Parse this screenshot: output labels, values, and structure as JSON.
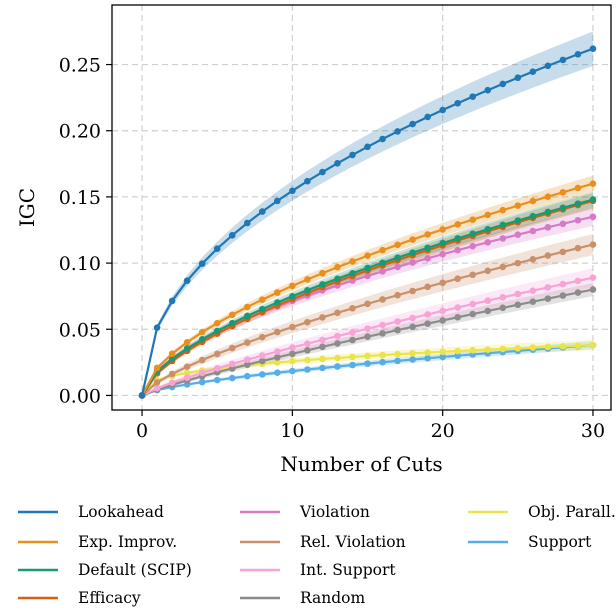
{
  "chart_data": {
    "type": "line",
    "xlabel": "Number of Cuts",
    "ylabel": "IGC",
    "xlim": [
      -2,
      31.2
    ],
    "ylim": [
      -0.011,
      0.295
    ],
    "xticks": [
      0,
      10,
      20,
      30
    ],
    "yticks": [
      0.0,
      0.05,
      0.1,
      0.15,
      0.2,
      0.25
    ],
    "ytick_labels": [
      "0.00",
      "0.05",
      "0.10",
      "0.15",
      "0.20",
      "0.25"
    ],
    "grid": true,
    "grid_style": "dashed",
    "legend_position": "bottom",
    "markers": true,
    "confidence_band": true,
    "series": [
      {
        "name": "Lookahead",
        "color": "#1f77b4",
        "final": 0.262,
        "p": 0.48,
        "band": 0.013
      },
      {
        "name": "Exp. Improv.",
        "color": "#e8901e",
        "final": 0.16,
        "p": 0.6,
        "band": 0.006
      },
      {
        "name": "Default (SCIP)",
        "color": "#1a9a74",
        "final": 0.148,
        "p": 0.62,
        "band": 0.006
      },
      {
        "name": "Efficacy",
        "color": "#d95f10",
        "final": 0.147,
        "p": 0.64,
        "band": 0.006
      },
      {
        "name": "Violation",
        "color": "#d77ac6",
        "final": 0.135,
        "p": 0.58,
        "band": 0.007
      },
      {
        "name": "Rel. Violation",
        "color": "#c9906a",
        "final": 0.114,
        "p": 0.72,
        "band": 0.008
      },
      {
        "name": "Int. Support",
        "color": "#f7a3d6",
        "final": 0.089,
        "p": 0.82,
        "band": 0.007
      },
      {
        "name": "Random",
        "color": "#8c8c8c",
        "final": 0.08,
        "p": 0.85,
        "band": 0.005
      },
      {
        "name": "Obj. Parall.",
        "color": "#eae34a",
        "final": 0.038,
        "p": 0.35,
        "band": 0.004
      },
      {
        "name": "Support",
        "color": "#56aee9",
        "final": 0.038,
        "p": 0.66,
        "band": 0.003
      }
    ],
    "x_values": [
      0,
      1,
      2,
      3,
      4,
      5,
      6,
      7,
      8,
      9,
      10,
      11,
      12,
      13,
      14,
      15,
      16,
      17,
      18,
      19,
      20,
      21,
      22,
      23,
      24,
      25,
      26,
      27,
      28,
      29,
      30
    ]
  }
}
